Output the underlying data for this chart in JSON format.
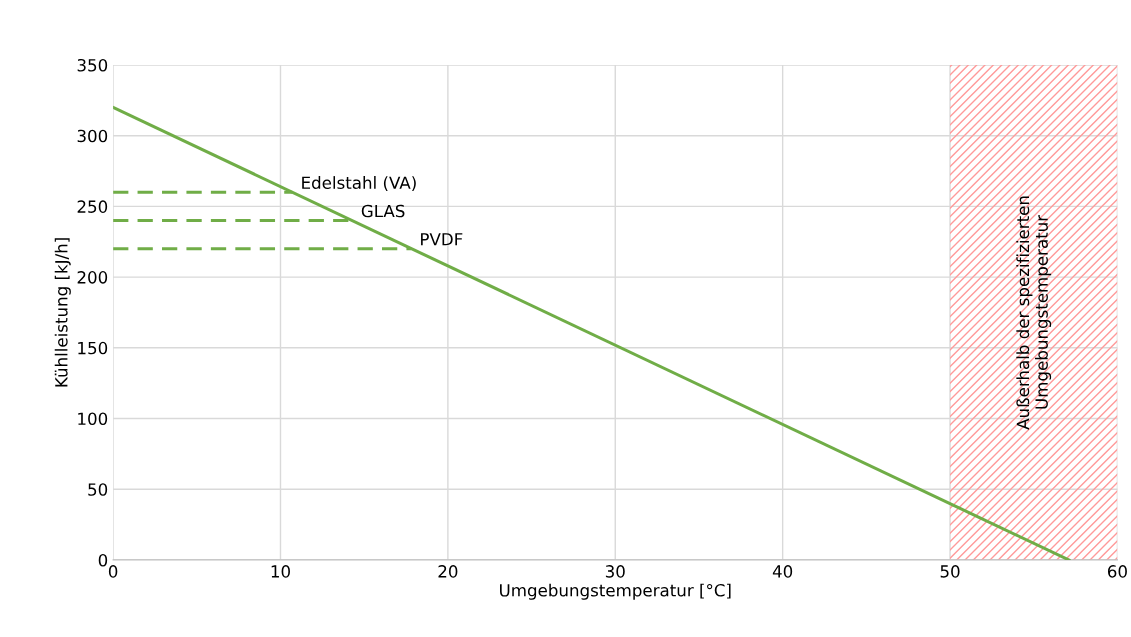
{
  "chart_data": {
    "type": "line",
    "xlabel": "Umgebungstemperatur [°C]",
    "ylabel": "Kühlleistung [kJ/h]",
    "xlim": [
      0,
      60
    ],
    "xticks": [
      0,
      10,
      20,
      30,
      40,
      50,
      60
    ],
    "ylim": [
      0,
      350
    ],
    "yticks": [
      0,
      50,
      100,
      150,
      200,
      250,
      300,
      350
    ],
    "grid": true,
    "line_style": "solid",
    "series": [
      {
        "color": "#70ad47",
        "x": [
          0,
          57.1
        ],
        "values": [
          320,
          0
        ]
      },
      {
        "name": "Edelstahl (VA)",
        "color": "#70ad47",
        "line_style": "dashed",
        "x": [
          0,
          10.7
        ],
        "values": [
          260,
          260
        ]
      },
      {
        "name": "GLAS",
        "color": "#70ad47",
        "line_style": "dashed",
        "x": [
          0,
          14.3
        ],
        "values": [
          240,
          240
        ]
      },
      {
        "name": "PVDF",
        "color": "#70ad47",
        "line_style": "dashed",
        "x": [
          0,
          17.8
        ],
        "values": [
          220,
          220
        ]
      }
    ],
    "bands": [
      {
        "axis": "x",
        "from": 50,
        "to": 60,
        "label": "Außerhalb der spezifizierten\nUmgebungstemperatur",
        "color": "#ff9999"
      }
    ]
  }
}
